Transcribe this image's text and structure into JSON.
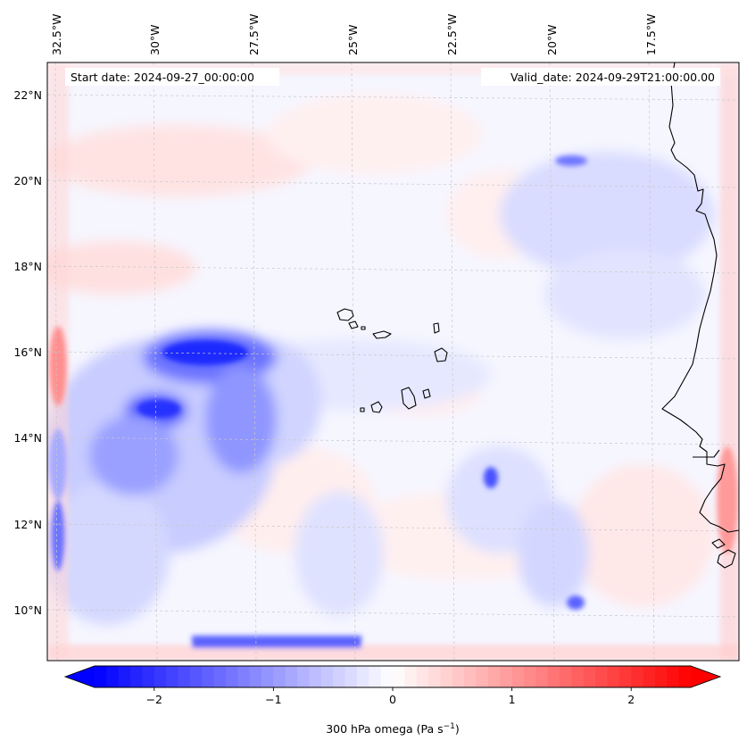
{
  "header": {
    "start_date": "Start date: 2024-09-27_00:00:00",
    "valid_date": "Valid_date: 2024-09-29T21:00:00.00"
  },
  "map": {
    "lon_labels": [
      "32.5°W",
      "30°W",
      "27.5°W",
      "25°W",
      "22.5°W",
      "20°W",
      "17.5°W"
    ],
    "lat_labels": [
      "22°N",
      "20°N",
      "18°N",
      "16°N",
      "14°N",
      "12°N",
      "10°N"
    ]
  },
  "colorbar": {
    "ticks": [
      {
        "value": -2,
        "label": "−2"
      },
      {
        "value": -1,
        "label": "−1"
      },
      {
        "value": 0,
        "label": "0"
      },
      {
        "value": 1,
        "label": "1"
      },
      {
        "value": 2,
        "label": "2"
      }
    ],
    "label_main": "300 hPa omega (Pa s",
    "label_exp": "−1",
    "label_close": ")",
    "vmin": -2.5,
    "vmax": 2.5,
    "steps": 50,
    "color_min": "#0000ff",
    "color_mid": "#ffffff",
    "color_max": "#ff0000"
  },
  "colors": {
    "coast": "#000000",
    "grid": "#c8c8c8",
    "field_base": "#f7f7ff"
  }
}
